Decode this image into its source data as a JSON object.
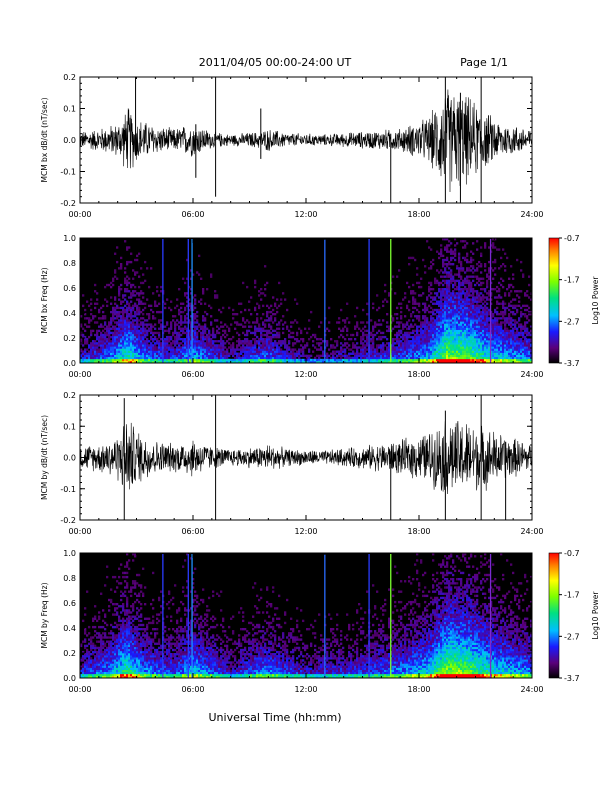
{
  "header": {
    "title": "2011/04/05  00:00-24:00 UT",
    "page": "Page 1/1"
  },
  "xaxis_label": "Universal Time (hh:mm)",
  "colors": {
    "background": "#ffffff",
    "trace": "#000000",
    "spectrogram_floor": "#000000"
  },
  "chart_data": [
    {
      "type": "line",
      "ylabel": "MCM bx dB/dt (nT/sec)",
      "xlim": [
        0,
        24
      ],
      "ylim": [
        -0.2,
        0.2
      ],
      "x_ticks": [
        "00:00",
        "06:00",
        "12:00",
        "18:00",
        "24:00"
      ],
      "y_ticks": [
        "-0.2",
        "-0.1",
        "0.0",
        "0.1",
        "0.2"
      ],
      "envelope": [
        {
          "x": 0.0,
          "amp": 0.03
        },
        {
          "x": 1.0,
          "amp": 0.04
        },
        {
          "x": 2.0,
          "amp": 0.06
        },
        {
          "x": 2.6,
          "amp": 0.12
        },
        {
          "x": 3.0,
          "amp": 0.08
        },
        {
          "x": 4.0,
          "amp": 0.05
        },
        {
          "x": 5.0,
          "amp": 0.04
        },
        {
          "x": 6.0,
          "amp": 0.06
        },
        {
          "x": 7.0,
          "amp": 0.03
        },
        {
          "x": 8.0,
          "amp": 0.02
        },
        {
          "x": 9.5,
          "amp": 0.03
        },
        {
          "x": 10.0,
          "amp": 0.04
        },
        {
          "x": 11.0,
          "amp": 0.025
        },
        {
          "x": 13.0,
          "amp": 0.02
        },
        {
          "x": 15.0,
          "amp": 0.03
        },
        {
          "x": 17.0,
          "amp": 0.04
        },
        {
          "x": 18.5,
          "amp": 0.08
        },
        {
          "x": 19.5,
          "amp": 0.19
        },
        {
          "x": 20.5,
          "amp": 0.16
        },
        {
          "x": 21.5,
          "amp": 0.1
        },
        {
          "x": 22.5,
          "amp": 0.06
        },
        {
          "x": 24.0,
          "amp": 0.04
        }
      ],
      "spikes": [
        {
          "x": 2.95,
          "y0": -0.05,
          "y1": 0.2
        },
        {
          "x": 6.15,
          "y0": -0.12,
          "y1": 0.05
        },
        {
          "x": 7.2,
          "y0": -0.18,
          "y1": 0.2
        },
        {
          "x": 9.6,
          "y0": -0.06,
          "y1": 0.1
        },
        {
          "x": 16.5,
          "y0": -0.2,
          "y1": 0.02
        },
        {
          "x": 19.4,
          "y0": -0.2,
          "y1": 0.2
        },
        {
          "x": 20.2,
          "y0": -0.2,
          "y1": 0.15
        },
        {
          "x": 21.3,
          "y0": -0.2,
          "y1": 0.2
        }
      ]
    },
    {
      "type": "heatmap",
      "ylabel": "MCM bx Freq (Hz)",
      "xlim": [
        0,
        24
      ],
      "ylim": [
        0,
        1.0
      ],
      "x_ticks": [
        "00:00",
        "06:00",
        "12:00",
        "18:00",
        "24:00"
      ],
      "y_ticks": [
        "0.0",
        "0.2",
        "0.4",
        "0.6",
        "0.8",
        "1.0"
      ],
      "colorbar": {
        "label": "Log10 Power",
        "ticks": [
          "-0.7",
          "-1.7",
          "-2.7",
          "-3.7"
        ],
        "range": [
          -3.7,
          -0.7
        ]
      },
      "activity": [
        {
          "x": 0.0,
          "level": 0.3
        },
        {
          "x": 1.5,
          "level": 0.45
        },
        {
          "x": 2.5,
          "level": 0.7
        },
        {
          "x": 3.5,
          "level": 0.45
        },
        {
          "x": 5.0,
          "level": 0.35
        },
        {
          "x": 6.0,
          "level": 0.55
        },
        {
          "x": 8.0,
          "level": 0.25
        },
        {
          "x": 9.8,
          "level": 0.45
        },
        {
          "x": 12.0,
          "level": 0.22
        },
        {
          "x": 15.0,
          "level": 0.3
        },
        {
          "x": 17.0,
          "level": 0.4
        },
        {
          "x": 18.5,
          "level": 0.55
        },
        {
          "x": 19.5,
          "level": 0.9
        },
        {
          "x": 20.5,
          "level": 0.85
        },
        {
          "x": 22.0,
          "level": 0.6
        },
        {
          "x": 24.0,
          "level": 0.45
        }
      ],
      "lines": [
        {
          "x": 4.4,
          "color": "#2a3cff"
        },
        {
          "x": 5.75,
          "color": "#2a3cff"
        },
        {
          "x": 5.95,
          "color": "#1e90ff"
        },
        {
          "x": 13.0,
          "color": "#2a6cff"
        },
        {
          "x": 15.35,
          "color": "#2a3cff"
        },
        {
          "x": 16.5,
          "color": "#7cff30"
        },
        {
          "x": 21.8,
          "color": "#7a2ad0"
        }
      ]
    },
    {
      "type": "line",
      "ylabel": "MCM by dB/dt (nT/sec)",
      "xlim": [
        0,
        24
      ],
      "ylim": [
        -0.2,
        0.2
      ],
      "x_ticks": [
        "00:00",
        "06:00",
        "12:00",
        "18:00",
        "24:00"
      ],
      "y_ticks": [
        "-0.2",
        "-0.1",
        "0.0",
        "0.1",
        "0.2"
      ],
      "envelope": [
        {
          "x": 0.0,
          "amp": 0.04
        },
        {
          "x": 1.0,
          "amp": 0.05
        },
        {
          "x": 2.0,
          "amp": 0.08
        },
        {
          "x": 2.5,
          "amp": 0.15
        },
        {
          "x": 3.0,
          "amp": 0.1
        },
        {
          "x": 4.0,
          "amp": 0.06
        },
        {
          "x": 5.0,
          "amp": 0.05
        },
        {
          "x": 6.0,
          "amp": 0.07
        },
        {
          "x": 7.0,
          "amp": 0.04
        },
        {
          "x": 8.0,
          "amp": 0.03
        },
        {
          "x": 9.5,
          "amp": 0.04
        },
        {
          "x": 10.0,
          "amp": 0.05
        },
        {
          "x": 11.0,
          "amp": 0.03
        },
        {
          "x": 13.0,
          "amp": 0.025
        },
        {
          "x": 15.0,
          "amp": 0.04
        },
        {
          "x": 17.0,
          "amp": 0.06
        },
        {
          "x": 18.5,
          "amp": 0.09
        },
        {
          "x": 19.5,
          "amp": 0.14
        },
        {
          "x": 20.5,
          "amp": 0.13
        },
        {
          "x": 21.5,
          "amp": 0.11
        },
        {
          "x": 22.5,
          "amp": 0.08
        },
        {
          "x": 24.0,
          "amp": 0.05
        }
      ],
      "spikes": [
        {
          "x": 2.35,
          "y0": -0.2,
          "y1": 0.19
        },
        {
          "x": 7.2,
          "y0": -0.2,
          "y1": 0.2
        },
        {
          "x": 16.5,
          "y0": -0.2,
          "y1": 0.02
        },
        {
          "x": 19.4,
          "y0": -0.2,
          "y1": 0.15
        },
        {
          "x": 21.3,
          "y0": -0.2,
          "y1": 0.2
        },
        {
          "x": 22.6,
          "y0": -0.2,
          "y1": 0.05
        }
      ]
    },
    {
      "type": "heatmap",
      "ylabel": "MCM by Freq (Hz)",
      "xlim": [
        0,
        24
      ],
      "ylim": [
        0,
        1.0
      ],
      "x_ticks": [
        "00:00",
        "06:00",
        "12:00",
        "18:00",
        "24:00"
      ],
      "y_ticks": [
        "0.0",
        "0.2",
        "0.4",
        "0.6",
        "0.8",
        "1.0"
      ],
      "colorbar": {
        "label": "Log10 Power",
        "ticks": [
          "-0.7",
          "-1.7",
          "-2.7",
          "-3.7"
        ],
        "range": [
          -3.7,
          -0.7
        ]
      },
      "activity": [
        {
          "x": 0.0,
          "level": 0.35
        },
        {
          "x": 1.5,
          "level": 0.5
        },
        {
          "x": 2.5,
          "level": 0.75
        },
        {
          "x": 3.5,
          "level": 0.5
        },
        {
          "x": 5.0,
          "level": 0.4
        },
        {
          "x": 6.0,
          "level": 0.6
        },
        {
          "x": 8.0,
          "level": 0.3
        },
        {
          "x": 9.8,
          "level": 0.5
        },
        {
          "x": 12.0,
          "level": 0.3
        },
        {
          "x": 15.0,
          "level": 0.38
        },
        {
          "x": 17.0,
          "level": 0.48
        },
        {
          "x": 18.5,
          "level": 0.62
        },
        {
          "x": 19.5,
          "level": 0.92
        },
        {
          "x": 20.5,
          "level": 0.88
        },
        {
          "x": 22.0,
          "level": 0.65
        },
        {
          "x": 24.0,
          "level": 0.5
        }
      ],
      "lines": [
        {
          "x": 4.4,
          "color": "#2a3cff"
        },
        {
          "x": 5.75,
          "color": "#2a3cff"
        },
        {
          "x": 5.95,
          "color": "#1e90ff"
        },
        {
          "x": 13.0,
          "color": "#2a6cff"
        },
        {
          "x": 15.35,
          "color": "#2a3cff"
        },
        {
          "x": 16.5,
          "color": "#7cff30"
        },
        {
          "x": 21.8,
          "color": "#7a2ad0"
        }
      ]
    }
  ]
}
